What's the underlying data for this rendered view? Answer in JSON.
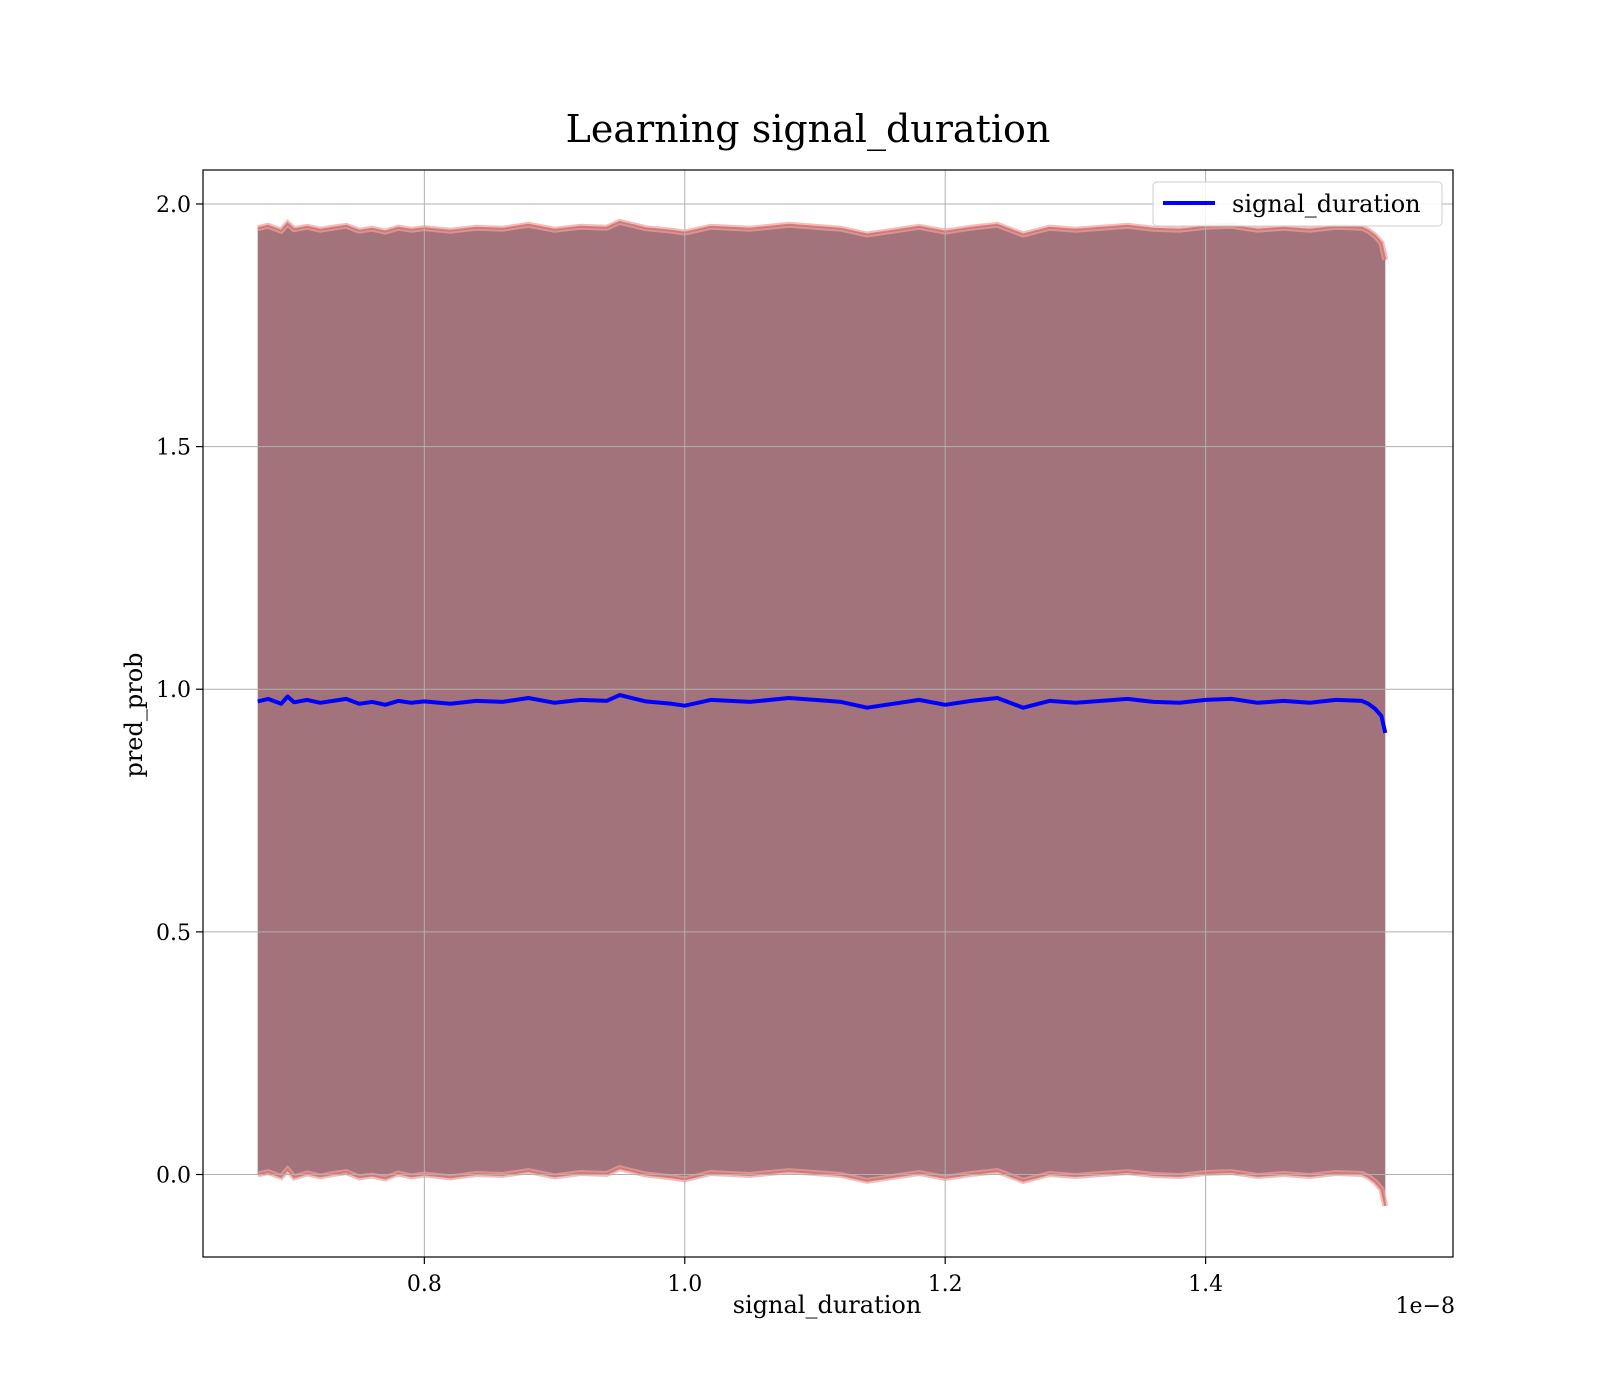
{
  "chart_data": {
    "type": "line",
    "title": "Learning signal_duration",
    "xlabel": "signal_duration",
    "ylabel": "pred_prob",
    "x_offset_text": "1e−8",
    "xlim": [
      6.3e-09,
      1.59e-08
    ],
    "ylim": [
      -0.17,
      2.07
    ],
    "x_ticks": [
      8e-09,
      1e-08,
      1.2e-08,
      1.4e-08
    ],
    "x_tick_labels": [
      "0.8",
      "1.0",
      "1.2",
      "1.4"
    ],
    "y_ticks": [
      0.0,
      0.5,
      1.0,
      1.5,
      2.0
    ],
    "y_tick_labels": [
      "0.0",
      "0.5",
      "1.0",
      "1.5",
      "2.0"
    ],
    "grid": true,
    "legend": {
      "position": "top-right",
      "entries": [
        "signal_duration"
      ]
    },
    "colors": {
      "line": "#0000ff",
      "band_fill": "#a2737a",
      "band_edge": "#f4a09a",
      "band_edge_dark": "#c87070",
      "grid": "#b0b0b0"
    },
    "series": [
      {
        "name": "signal_duration",
        "x": [
          6.72e-09,
          6.8e-09,
          6.9e-09,
          6.95e-09,
          7e-09,
          7.1e-09,
          7.2e-09,
          7.3e-09,
          7.4e-09,
          7.5e-09,
          7.6e-09,
          7.7e-09,
          7.8e-09,
          7.9e-09,
          8e-09,
          8.2e-09,
          8.4e-09,
          8.6e-09,
          8.8e-09,
          9e-09,
          9.2e-09,
          9.4e-09,
          9.5e-09,
          9.7e-09,
          9.9e-09,
          1e-08,
          1.02e-08,
          1.05e-08,
          1.08e-08,
          1.1e-08,
          1.12e-08,
          1.14e-08,
          1.16e-08,
          1.18e-08,
          1.2e-08,
          1.22e-08,
          1.24e-08,
          1.26e-08,
          1.28e-08,
          1.3e-08,
          1.32e-08,
          1.34e-08,
          1.36e-08,
          1.38e-08,
          1.4e-08,
          1.42e-08,
          1.44e-08,
          1.46e-08,
          1.48e-08,
          1.5e-08,
          1.52e-08,
          1.525e-08,
          1.53e-08,
          1.535e-08,
          1.538e-08
        ],
        "values": [
          0.975,
          0.98,
          0.97,
          0.985,
          0.973,
          0.978,
          0.972,
          0.976,
          0.98,
          0.97,
          0.974,
          0.968,
          0.976,
          0.972,
          0.975,
          0.97,
          0.976,
          0.974,
          0.982,
          0.972,
          0.978,
          0.976,
          0.988,
          0.975,
          0.97,
          0.966,
          0.978,
          0.974,
          0.982,
          0.978,
          0.974,
          0.962,
          0.97,
          0.978,
          0.968,
          0.976,
          0.982,
          0.962,
          0.976,
          0.972,
          0.976,
          0.98,
          0.974,
          0.972,
          0.978,
          0.98,
          0.972,
          0.976,
          0.972,
          0.978,
          0.976,
          0.97,
          0.96,
          0.945,
          0.91
        ],
        "lower": [
          0.0,
          0.005,
          -0.005,
          0.01,
          -0.006,
          0.002,
          -0.004,
          0.001,
          0.005,
          -0.006,
          -0.002,
          -0.008,
          0.002,
          -0.004,
          0.0,
          -0.006,
          0.001,
          -0.001,
          0.007,
          -0.004,
          0.003,
          0.001,
          0.013,
          0.0,
          -0.006,
          -0.01,
          0.003,
          -0.001,
          0.007,
          0.003,
          -0.001,
          -0.013,
          -0.005,
          0.003,
          -0.007,
          0.001,
          0.007,
          -0.013,
          0.001,
          -0.003,
          0.001,
          0.005,
          -0.001,
          -0.003,
          0.003,
          0.005,
          -0.003,
          0.001,
          -0.003,
          0.003,
          0.001,
          -0.005,
          -0.015,
          -0.03,
          -0.065
        ],
        "upper": [
          1.95,
          1.955,
          1.945,
          1.96,
          1.948,
          1.953,
          1.947,
          1.951,
          1.955,
          1.945,
          1.949,
          1.943,
          1.951,
          1.947,
          1.95,
          1.945,
          1.951,
          1.949,
          1.957,
          1.947,
          1.953,
          1.951,
          1.963,
          1.95,
          1.945,
          1.941,
          1.953,
          1.949,
          1.957,
          1.953,
          1.949,
          1.937,
          1.945,
          1.953,
          1.943,
          1.951,
          1.957,
          1.937,
          1.951,
          1.947,
          1.951,
          1.955,
          1.949,
          1.947,
          1.953,
          1.955,
          1.947,
          1.951,
          1.947,
          1.953,
          1.951,
          1.945,
          1.935,
          1.92,
          1.885
        ]
      }
    ]
  }
}
